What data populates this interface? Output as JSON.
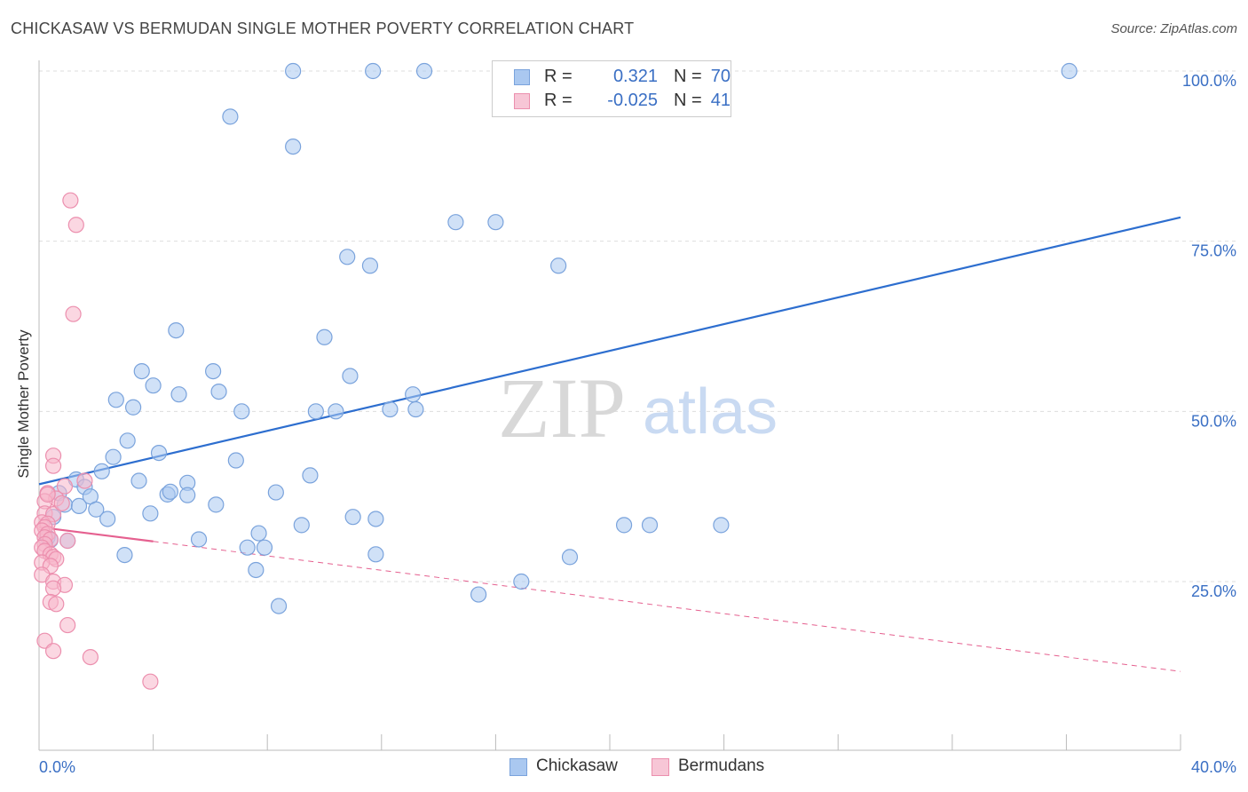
{
  "title": "CHICKASAW VS BERMUDAN SINGLE MOTHER POVERTY CORRELATION CHART",
  "source": "Source: ZipAtlas.com",
  "watermark": {
    "zip": "ZIP",
    "atlas": "atlas"
  },
  "colors": {
    "blue_fill": "#aac8f0",
    "blue_stroke": "#7aa3dc",
    "blue_line": "#2d6ecf",
    "pink_fill": "#f7b7cb",
    "pink_stroke": "#ec8fae",
    "pink_line": "#e5608f",
    "tick_text": "#3a6fc4",
    "grid": "#dddddd"
  },
  "legend": {
    "rows": [
      {
        "r_label": "R =",
        "r_value": "0.321",
        "n_label": "N =",
        "n_value": "70"
      },
      {
        "r_label": "R =",
        "r_value": "-0.025",
        "n_label": "N =",
        "n_value": "41"
      }
    ],
    "bottom": [
      "Chickasaw",
      "Bermudans"
    ]
  },
  "chart_data": {
    "type": "scatter",
    "title": "CHICKASAW VS BERMUDAN SINGLE MOTHER POVERTY CORRELATION CHART",
    "xlabel": "",
    "ylabel": "Single Mother Poverty",
    "xlim": [
      0,
      40
    ],
    "ylim": [
      0,
      102
    ],
    "x_tick_labels": [
      "0.0%",
      "40.0%"
    ],
    "y_ticks": [
      {
        "value": 25,
        "label": "25.0%"
      },
      {
        "value": 50,
        "label": "50.0%"
      },
      {
        "value": 75,
        "label": "75.0%"
      },
      {
        "value": 100,
        "label": "100.0%"
      }
    ],
    "grid": "horizontal dashed",
    "legend_position": "top-center",
    "series": [
      {
        "name": "Chickasaw",
        "points": [
          [
            8.9,
            100
          ],
          [
            11.7,
            100
          ],
          [
            13.5,
            100
          ],
          [
            36.1,
            100
          ],
          [
            6.7,
            93.3
          ],
          [
            8.9,
            88.9
          ],
          [
            14.6,
            77.8
          ],
          [
            16.0,
            77.8
          ],
          [
            10.8,
            72.7
          ],
          [
            11.6,
            71.4
          ],
          [
            18.2,
            71.4
          ],
          [
            4.8,
            61.9
          ],
          [
            10.0,
            60.9
          ],
          [
            3.6,
            55.9
          ],
          [
            6.1,
            55.9
          ],
          [
            10.9,
            55.2
          ],
          [
            4.0,
            53.8
          ],
          [
            6.3,
            52.9
          ],
          [
            4.9,
            52.5
          ],
          [
            13.1,
            52.5
          ],
          [
            2.7,
            51.7
          ],
          [
            3.3,
            50.6
          ],
          [
            7.1,
            50.0
          ],
          [
            9.7,
            50.0
          ],
          [
            10.4,
            50.0
          ],
          [
            12.3,
            50.3
          ],
          [
            13.2,
            50.3
          ],
          [
            3.1,
            45.7
          ],
          [
            4.2,
            43.9
          ],
          [
            2.6,
            43.3
          ],
          [
            6.9,
            42.8
          ],
          [
            9.5,
            40.6
          ],
          [
            2.2,
            41.2
          ],
          [
            1.3,
            40.0
          ],
          [
            3.5,
            39.8
          ],
          [
            5.2,
            39.5
          ],
          [
            1.6,
            38.9
          ],
          [
            0.7,
            38.0
          ],
          [
            4.5,
            37.8
          ],
          [
            4.6,
            38.2
          ],
          [
            1.8,
            37.5
          ],
          [
            5.2,
            37.7
          ],
          [
            8.3,
            38.1
          ],
          [
            0.9,
            36.3
          ],
          [
            1.4,
            36.1
          ],
          [
            6.2,
            36.3
          ],
          [
            2.0,
            35.6
          ],
          [
            3.9,
            35.0
          ],
          [
            0.5,
            34.5
          ],
          [
            2.4,
            34.2
          ],
          [
            11.0,
            34.5
          ],
          [
            11.8,
            34.2
          ],
          [
            9.2,
            33.3
          ],
          [
            20.5,
            33.3
          ],
          [
            21.4,
            33.3
          ],
          [
            23.9,
            33.3
          ],
          [
            7.7,
            32.1
          ],
          [
            0.3,
            31.5
          ],
          [
            0.4,
            31.1
          ],
          [
            5.6,
            31.2
          ],
          [
            7.3,
            30.0
          ],
          [
            7.9,
            30.0
          ],
          [
            3.0,
            28.9
          ],
          [
            11.8,
            29.0
          ],
          [
            18.6,
            28.6
          ],
          [
            7.6,
            26.7
          ],
          [
            16.9,
            25.0
          ],
          [
            15.4,
            23.1
          ],
          [
            8.4,
            21.4
          ],
          [
            1.0,
            31.0
          ]
        ]
      },
      {
        "name": "Bermudans",
        "points": [
          [
            1.1,
            81.0
          ],
          [
            1.3,
            77.4
          ],
          [
            1.2,
            64.3
          ],
          [
            0.5,
            43.5
          ],
          [
            0.5,
            42.0
          ],
          [
            1.6,
            39.8
          ],
          [
            0.9,
            39.0
          ],
          [
            0.3,
            38.0
          ],
          [
            0.6,
            37.2
          ],
          [
            0.2,
            36.8
          ],
          [
            0.2,
            35.0
          ],
          [
            0.5,
            34.9
          ],
          [
            0.1,
            33.7
          ],
          [
            0.3,
            33.5
          ],
          [
            0.2,
            33.0
          ],
          [
            0.1,
            32.5
          ],
          [
            0.3,
            32.0
          ],
          [
            0.2,
            31.5
          ],
          [
            0.4,
            31.2
          ],
          [
            1.0,
            31.0
          ],
          [
            0.2,
            30.5
          ],
          [
            0.1,
            30.0
          ],
          [
            0.2,
            29.5
          ],
          [
            0.4,
            29.0
          ],
          [
            0.5,
            28.6
          ],
          [
            0.6,
            28.3
          ],
          [
            0.1,
            27.8
          ],
          [
            0.4,
            27.3
          ],
          [
            0.1,
            26.0
          ],
          [
            0.5,
            25.0
          ],
          [
            0.9,
            24.5
          ],
          [
            0.5,
            24.0
          ],
          [
            0.4,
            22.0
          ],
          [
            0.6,
            21.7
          ],
          [
            1.0,
            18.6
          ],
          [
            0.2,
            16.3
          ],
          [
            0.5,
            14.8
          ],
          [
            1.8,
            13.9
          ],
          [
            3.9,
            10.3
          ],
          [
            0.3,
            37.8
          ],
          [
            0.8,
            36.5
          ]
        ]
      }
    ],
    "trend_lines": [
      {
        "series": "Chickasaw",
        "style": "solid",
        "from": [
          0,
          39.3
        ],
        "to": [
          40,
          78.5
        ]
      },
      {
        "series": "Bermudans",
        "style": "solid",
        "from": [
          0,
          33.0
        ],
        "to": [
          4,
          30.9
        ]
      },
      {
        "series": "Bermudans",
        "style": "dashed",
        "from": [
          4,
          30.9
        ],
        "to": [
          40,
          11.8
        ]
      }
    ]
  }
}
